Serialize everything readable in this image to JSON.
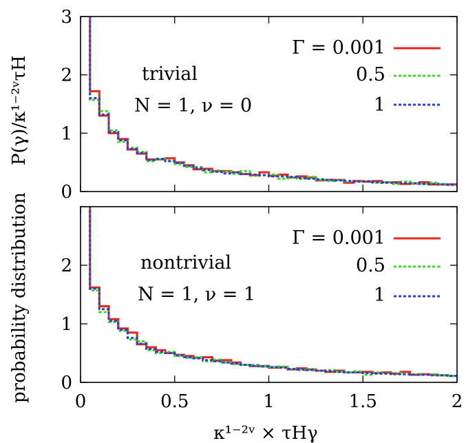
{
  "colors": {
    "red": "#e8271a",
    "green": "#33e01a",
    "blue": "#2a3ddc"
  },
  "legend": {
    "gamma_label": "Γ = 0.001",
    "half_label": "0.5",
    "one_label": "1"
  },
  "annotations": {
    "top_name": "trivial",
    "top_params": "N = 1, ν = 0",
    "bottom_name": "nontrivial",
    "bottom_params": "N = 1, ν = 1"
  },
  "ylabel_outer": "probability distribution",
  "ylabel_top": "P(γ)/κ¹⁻²ᵛτH",
  "xlabel": "κ¹⁻²ᵛ × τHγ",
  "chart_data": [
    {
      "type": "line",
      "panel": "top",
      "xlim": [
        0,
        2
      ],
      "ylim": [
        0,
        3
      ],
      "yticks": [
        "0",
        "1",
        "2",
        "3"
      ],
      "xticks": [
        0,
        0.5,
        1,
        1.5,
        2
      ],
      "x": [
        0.05,
        0.1,
        0.15,
        0.2,
        0.25,
        0.3,
        0.35,
        0.4,
        0.45,
        0.5,
        0.55,
        0.6,
        0.65,
        0.7,
        0.75,
        0.8,
        0.85,
        0.9,
        0.95,
        1.0,
        1.05,
        1.1,
        1.15,
        1.2,
        1.25,
        1.3,
        1.35,
        1.4,
        1.45,
        1.5,
        1.55,
        1.6,
        1.65,
        1.7,
        1.75,
        1.8,
        1.85,
        1.9,
        1.95
      ],
      "series": [
        {
          "name": "Γ = 0.001",
          "color": "red",
          "dash": "solid",
          "values": [
            1.72,
            1.3,
            1.0,
            0.9,
            0.72,
            0.65,
            0.55,
            0.55,
            0.57,
            0.5,
            0.45,
            0.38,
            0.39,
            0.35,
            0.35,
            0.33,
            0.3,
            0.28,
            0.33,
            0.27,
            0.29,
            0.24,
            0.26,
            0.24,
            0.19,
            0.2,
            0.2,
            0.15,
            0.18,
            0.17,
            0.18,
            0.16,
            0.16,
            0.13,
            0.14,
            0.16,
            0.12,
            0.12,
            0.12
          ]
        },
        {
          "name": "0.5",
          "color": "green",
          "dash": "dotted",
          "values": [
            1.57,
            1.38,
            1.05,
            0.85,
            0.75,
            0.68,
            0.52,
            0.55,
            0.53,
            0.47,
            0.42,
            0.42,
            0.33,
            0.36,
            0.34,
            0.3,
            0.35,
            0.27,
            0.28,
            0.29,
            0.22,
            0.24,
            0.22,
            0.25,
            0.2,
            0.18,
            0.2,
            0.17,
            0.17,
            0.18,
            0.15,
            0.16,
            0.13,
            0.17,
            0.13,
            0.13,
            0.15,
            0.13,
            0.11
          ]
        },
        {
          "name": "1",
          "color": "blue",
          "dash": "dotted",
          "values": [
            1.6,
            1.32,
            1.02,
            0.88,
            0.73,
            0.66,
            0.54,
            0.56,
            0.52,
            0.49,
            0.44,
            0.4,
            0.37,
            0.34,
            0.31,
            0.33,
            0.3,
            0.29,
            0.28,
            0.26,
            0.26,
            0.25,
            0.23,
            0.22,
            0.21,
            0.2,
            0.19,
            0.18,
            0.17,
            0.17,
            0.16,
            0.15,
            0.15,
            0.14,
            0.14,
            0.13,
            0.13,
            0.12,
            0.12
          ]
        }
      ]
    },
    {
      "type": "line",
      "panel": "bottom",
      "xlim": [
        0,
        2
      ],
      "ylim": [
        0,
        3
      ],
      "yticks": [
        "0",
        "1",
        "2",
        ""
      ],
      "xticks": [
        0,
        0.5,
        1,
        1.5,
        2
      ],
      "x": [
        0.05,
        0.1,
        0.15,
        0.2,
        0.25,
        0.3,
        0.35,
        0.4,
        0.45,
        0.5,
        0.55,
        0.6,
        0.65,
        0.7,
        0.75,
        0.8,
        0.85,
        0.9,
        0.95,
        1.0,
        1.05,
        1.1,
        1.15,
        1.2,
        1.25,
        1.3,
        1.35,
        1.4,
        1.45,
        1.5,
        1.55,
        1.6,
        1.65,
        1.7,
        1.75,
        1.8,
        1.85,
        1.9,
        1.95
      ],
      "series": [
        {
          "name": "Γ = 0.001",
          "color": "red",
          "dash": "solid",
          "values": [
            1.62,
            1.3,
            1.08,
            0.92,
            0.85,
            0.65,
            0.6,
            0.55,
            0.5,
            0.47,
            0.45,
            0.42,
            0.43,
            0.37,
            0.38,
            0.34,
            0.3,
            0.28,
            0.28,
            0.25,
            0.26,
            0.22,
            0.24,
            0.22,
            0.2,
            0.18,
            0.2,
            0.17,
            0.17,
            0.18,
            0.16,
            0.17,
            0.15,
            0.18,
            0.13,
            0.14,
            0.13,
            0.12,
            0.11
          ]
        },
        {
          "name": "0.5",
          "color": "green",
          "dash": "dotted",
          "values": [
            1.57,
            1.2,
            1.03,
            0.88,
            0.73,
            0.7,
            0.55,
            0.5,
            0.52,
            0.45,
            0.42,
            0.43,
            0.36,
            0.39,
            0.34,
            0.31,
            0.3,
            0.3,
            0.27,
            0.26,
            0.27,
            0.22,
            0.21,
            0.23,
            0.2,
            0.21,
            0.18,
            0.17,
            0.19,
            0.13,
            0.17,
            0.15,
            0.16,
            0.14,
            0.14,
            0.13,
            0.14,
            0.12,
            0.11
          ]
        },
        {
          "name": "1",
          "color": "blue",
          "dash": "dotted",
          "values": [
            1.6,
            1.25,
            1.05,
            0.9,
            0.76,
            0.66,
            0.57,
            0.52,
            0.5,
            0.46,
            0.43,
            0.41,
            0.38,
            0.36,
            0.34,
            0.32,
            0.3,
            0.28,
            0.27,
            0.26,
            0.25,
            0.23,
            0.22,
            0.21,
            0.2,
            0.19,
            0.18,
            0.17,
            0.17,
            0.16,
            0.15,
            0.15,
            0.14,
            0.14,
            0.13,
            0.13,
            0.12,
            0.12,
            0.11
          ]
        }
      ]
    }
  ]
}
